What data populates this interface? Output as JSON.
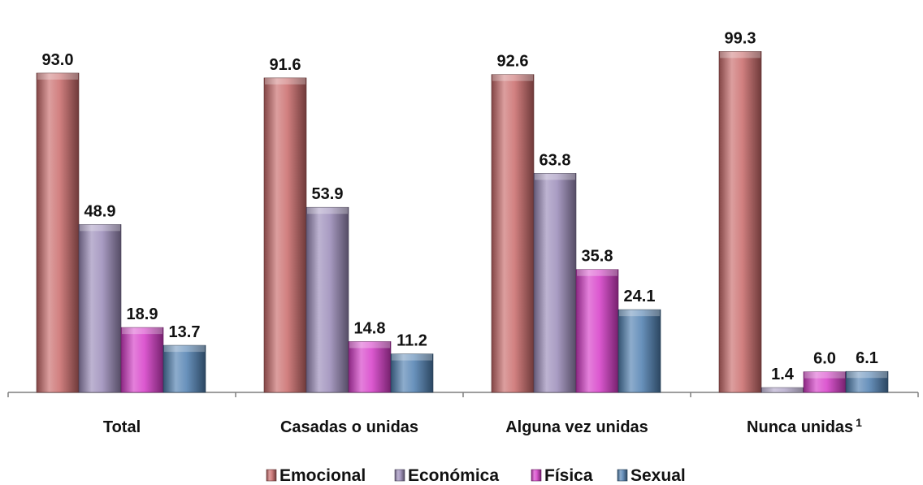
{
  "chart_data": {
    "type": "bar",
    "categories": [
      "Total",
      "Casadas o unidas",
      "Alguna vez unidas",
      "Nunca unidas"
    ],
    "category_superscripts": [
      "",
      "",
      "",
      "1"
    ],
    "series": [
      {
        "name": "Emocional",
        "color": "#c96a6a",
        "values": [
          93.0,
          91.6,
          92.6,
          99.3
        ]
      },
      {
        "name": "Económica",
        "color": "#9a8ab8",
        "values": [
          48.9,
          53.9,
          63.8,
          1.4
        ]
      },
      {
        "name": "Física",
        "color": "#d63cc8",
        "values": [
          18.9,
          14.8,
          35.8,
          6.0
        ]
      },
      {
        "name": "Sexual",
        "color": "#4f7fb0",
        "values": [
          13.7,
          11.2,
          24.1,
          6.1
        ]
      }
    ],
    "value_labels": [
      [
        "93.0",
        "48.9",
        "18.9",
        "13.7"
      ],
      [
        "91.6",
        "53.9",
        "14.8",
        "11.2"
      ],
      [
        "92.6",
        "63.8",
        "35.8",
        "24.1"
      ],
      [
        "99.3",
        "1.4",
        "6.0",
        "6.1"
      ]
    ],
    "title": "",
    "xlabel": "",
    "ylabel": "",
    "ylim": [
      0,
      100
    ],
    "grid": false,
    "legend_position": "bottom"
  }
}
